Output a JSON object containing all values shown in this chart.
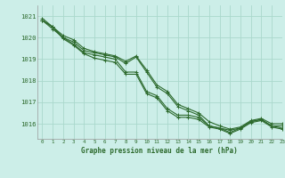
{
  "title": "Graphe pression niveau de la mer (hPa)",
  "background_color": "#cceee8",
  "grid_color": "#aad8cc",
  "line_color": "#2d6a2d",
  "marker_color": "#2d6a2d",
  "xlim": [
    -0.5,
    23
  ],
  "ylim": [
    1015.3,
    1021.5
  ],
  "xticks": [
    0,
    1,
    2,
    3,
    4,
    5,
    6,
    7,
    8,
    9,
    10,
    11,
    12,
    13,
    14,
    15,
    16,
    17,
    18,
    19,
    20,
    21,
    22,
    23
  ],
  "yticks": [
    1016,
    1017,
    1018,
    1019,
    1020,
    1021
  ],
  "series": [
    [
      1020.8,
      1020.5,
      1020.0,
      1019.8,
      1019.4,
      1019.3,
      1019.2,
      1019.1,
      1018.8,
      1019.1,
      1018.4,
      1017.7,
      1017.4,
      1016.8,
      1016.6,
      1016.4,
      1015.9,
      1015.8,
      1015.7,
      1015.8,
      1016.1,
      1016.2,
      1015.9,
      1015.9
    ],
    [
      1020.8,
      1020.4,
      1020.0,
      1019.7,
      1019.3,
      1019.2,
      1019.1,
      1019.0,
      1018.4,
      1018.4,
      1017.5,
      1017.3,
      1016.7,
      1016.4,
      1016.4,
      1016.3,
      1015.9,
      1015.8,
      1015.6,
      1015.8,
      1016.1,
      1016.2,
      1015.9,
      1015.8
    ],
    [
      1020.9,
      1020.5,
      1020.1,
      1019.9,
      1019.5,
      1019.35,
      1019.25,
      1019.15,
      1018.9,
      1019.15,
      1018.5,
      1017.8,
      1017.5,
      1016.9,
      1016.7,
      1016.5,
      1016.1,
      1015.9,
      1015.75,
      1015.85,
      1016.15,
      1016.25,
      1016.0,
      1016.0
    ],
    [
      1020.8,
      1020.5,
      1019.95,
      1019.65,
      1019.25,
      1019.05,
      1018.95,
      1018.85,
      1018.3,
      1018.3,
      1017.4,
      1017.2,
      1016.6,
      1016.3,
      1016.3,
      1016.2,
      1015.85,
      1015.75,
      1015.55,
      1015.75,
      1016.05,
      1016.15,
      1015.85,
      1015.75
    ]
  ]
}
